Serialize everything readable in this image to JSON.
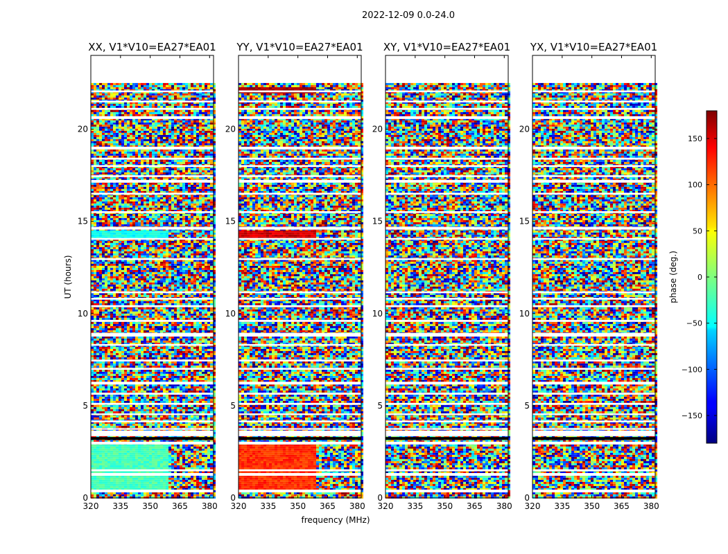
{
  "figure": {
    "suptitle": "2022-12-09 0.0-24.0",
    "xlabel": "frequency (MHz)",
    "ylabel": "UT (hours)"
  },
  "chart_data": {
    "type": "heatmap",
    "title": "2022-12-09 0.0-24.0",
    "xlabel": "frequency (MHz)",
    "ylabel": "UT (hours)",
    "xlim": [
      320,
      382
    ],
    "ylim": [
      0,
      24
    ],
    "xticks": [
      320,
      335,
      350,
      365,
      380
    ],
    "yticks": [
      0,
      5,
      10,
      15,
      20
    ],
    "panels": [
      {
        "title": "XX, V1*V10=EA27*EA01",
        "polarization": "XX"
      },
      {
        "title": "YY, V1*V10=EA27*EA01",
        "polarization": "YY"
      },
      {
        "title": "XY, V1*V10=EA27*EA01",
        "polarization": "XY"
      },
      {
        "title": "YX, V1*V10=EA27*EA01",
        "polarization": "YX"
      }
    ],
    "colorbar": {
      "label": "phase (deg.)",
      "range": [
        -180,
        180
      ],
      "ticks": [
        -150,
        -100,
        -50,
        0,
        50,
        100,
        150
      ],
      "tick_labels": [
        "−150",
        "−100",
        "−50",
        "0",
        "50",
        "100",
        "150"
      ],
      "colormap": "jet"
    },
    "data_extent_hours": [
      0,
      22.5
    ],
    "flagged_bands_hours": [
      [
        0.3,
        0.45
      ],
      [
        1.2,
        1.35
      ],
      [
        1.45,
        1.55
      ],
      [
        2.9,
        3.05
      ],
      [
        3.35,
        3.65
      ],
      [
        3.7,
        3.78
      ],
      [
        4.1,
        4.2
      ],
      [
        4.5,
        4.58
      ],
      [
        5.05,
        5.15
      ],
      [
        5.6,
        5.7
      ],
      [
        6.15,
        6.3
      ],
      [
        6.95,
        7.05
      ],
      [
        7.4,
        7.5
      ],
      [
        8.25,
        8.35
      ],
      [
        8.75,
        8.95
      ],
      [
        9.55,
        9.65
      ],
      [
        10.35,
        10.45
      ],
      [
        10.75,
        10.85
      ],
      [
        11.1,
        11.2
      ],
      [
        12.9,
        13.0
      ],
      [
        14.0,
        14.1
      ],
      [
        14.55,
        14.7
      ],
      [
        15.45,
        15.55
      ],
      [
        16.45,
        16.55
      ],
      [
        17.1,
        17.25
      ],
      [
        17.4,
        17.5
      ],
      [
        17.95,
        18.05
      ],
      [
        18.35,
        18.45
      ],
      [
        18.9,
        19.05
      ],
      [
        20.55,
        20.7
      ],
      [
        21.05,
        21.15
      ],
      [
        21.45,
        21.55
      ],
      [
        22.0,
        22.1
      ]
    ],
    "coherent_bands": [
      {
        "panel": "XX",
        "hours": [
          14.1,
          14.5
        ],
        "phase_deg": -40
      },
      {
        "panel": "XX",
        "hours": [
          0.5,
          3.0
        ],
        "phase_deg": -20
      },
      {
        "panel": "YY",
        "hours": [
          14.1,
          14.5
        ],
        "phase_deg": 150
      },
      {
        "panel": "YY",
        "hours": [
          0.5,
          3.0
        ],
        "phase_deg": 120
      },
      {
        "panel": "YY",
        "hours": [
          22.0,
          22.3
        ],
        "phase_deg": 170
      }
    ]
  }
}
